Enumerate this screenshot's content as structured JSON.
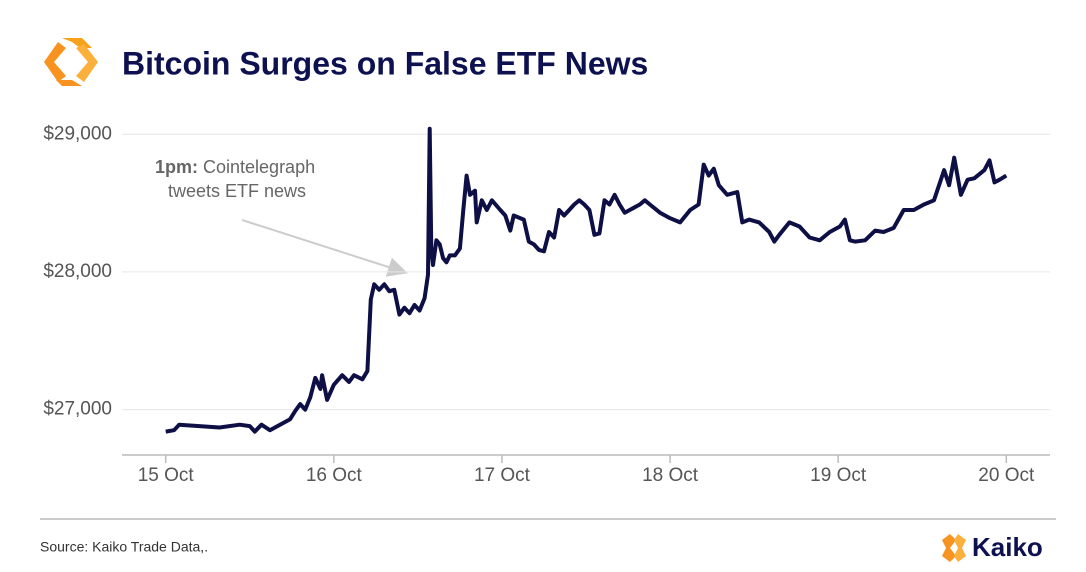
{
  "chart_data": {
    "type": "line",
    "title": "Bitcoin Surges on False ETF News",
    "annotation": {
      "lead": "1pm:",
      "lines": [
        "Cointelegraph",
        "tweets ETF news"
      ]
    },
    "source": "Source: Kaiko Trade Data,.",
    "brand": "Kaiko",
    "x": [
      15.0,
      15.05,
      15.08,
      15.2,
      15.32,
      15.44,
      15.5,
      15.53,
      15.57,
      15.62,
      15.68,
      15.74,
      15.77,
      15.8,
      15.83,
      15.86,
      15.89,
      15.92,
      15.93,
      15.96,
      16.0,
      16.05,
      16.09,
      16.12,
      16.17,
      16.2,
      16.22,
      16.24,
      16.27,
      16.3,
      16.33,
      16.36,
      16.39,
      16.42,
      16.45,
      16.48,
      16.51,
      16.54,
      16.56,
      16.57,
      16.58,
      16.59,
      16.61,
      16.63,
      16.65,
      16.67,
      16.69,
      16.72,
      16.75,
      16.77,
      16.79,
      16.81,
      16.84,
      16.85,
      16.88,
      16.91,
      16.94,
      16.99,
      17.02,
      17.05,
      17.07,
      17.13,
      17.16,
      17.19,
      17.22,
      17.25,
      17.28,
      17.31,
      17.34,
      17.37,
      17.4,
      17.43,
      17.46,
      17.49,
      17.52,
      17.55,
      17.58,
      17.61,
      17.64,
      17.67,
      17.7,
      17.73,
      17.76,
      17.82,
      17.85,
      17.88,
      17.94,
      18.0,
      18.06,
      18.12,
      18.17,
      18.2,
      18.23,
      18.26,
      18.29,
      18.34,
      18.4,
      18.43,
      18.47,
      18.53,
      18.59,
      18.62,
      18.65,
      18.71,
      18.77,
      18.83,
      18.89,
      18.95,
      19.01,
      19.04,
      19.07,
      19.1,
      19.16,
      19.22,
      19.27,
      19.33,
      19.39,
      19.45,
      19.51,
      19.57,
      19.63,
      19.66,
      19.69,
      19.73,
      19.77,
      19.81,
      19.87,
      19.9,
      19.93,
      19.96,
      20.0
    ],
    "series": [
      {
        "name": "BTC",
        "color": "#0d0f45",
        "values": [
          26840,
          26850,
          26890,
          26880,
          26870,
          26890,
          26880,
          26840,
          26890,
          26850,
          26890,
          26930,
          26990,
          27040,
          27000,
          27090,
          27230,
          27150,
          27250,
          27070,
          27180,
          27250,
          27200,
          27250,
          27220,
          27280,
          27800,
          27910,
          27870,
          27910,
          27860,
          27870,
          27690,
          27740,
          27700,
          27760,
          27720,
          27810,
          27980,
          29040,
          28160,
          28050,
          28230,
          28200,
          28100,
          28070,
          28120,
          28120,
          28170,
          28450,
          28700,
          28560,
          28590,
          28360,
          28520,
          28450,
          28520,
          28450,
          28410,
          28300,
          28410,
          28380,
          28220,
          28200,
          28160,
          28150,
          28290,
          28250,
          28450,
          28410,
          28450,
          28490,
          28520,
          28490,
          28450,
          28270,
          28280,
          28520,
          28490,
          28560,
          28490,
          28430,
          28450,
          28490,
          28520,
          28490,
          28430,
          28390,
          28360,
          28450,
          28490,
          28780,
          28700,
          28750,
          28630,
          28560,
          28580,
          28360,
          28380,
          28360,
          28290,
          28220,
          28270,
          28360,
          28330,
          28250,
          28230,
          28290,
          28330,
          28380,
          28230,
          28220,
          28230,
          28300,
          28290,
          28320,
          28450,
          28450,
          28490,
          28520,
          28740,
          28630,
          28830,
          28560,
          28670,
          28680,
          28740,
          28810,
          28650,
          28670,
          28700
        ]
      }
    ],
    "xlim": [
      14.74,
      20.26
    ],
    "xticks": [
      {
        "value": 15,
        "label": "15 Oct"
      },
      {
        "value": 16,
        "label": "16 Oct"
      },
      {
        "value": 17,
        "label": "17 Oct"
      },
      {
        "value": 18,
        "label": "18 Oct"
      },
      {
        "value": 19,
        "label": "19 Oct"
      },
      {
        "value": 20,
        "label": "20 Oct"
      }
    ],
    "ylim": [
      26670,
      29140
    ],
    "yticks": [
      {
        "value": 27000,
        "label": "$27,000"
      },
      {
        "value": 28000,
        "label": "$28,000"
      },
      {
        "value": 29000,
        "label": "$29,000"
      }
    ],
    "grid": true
  }
}
